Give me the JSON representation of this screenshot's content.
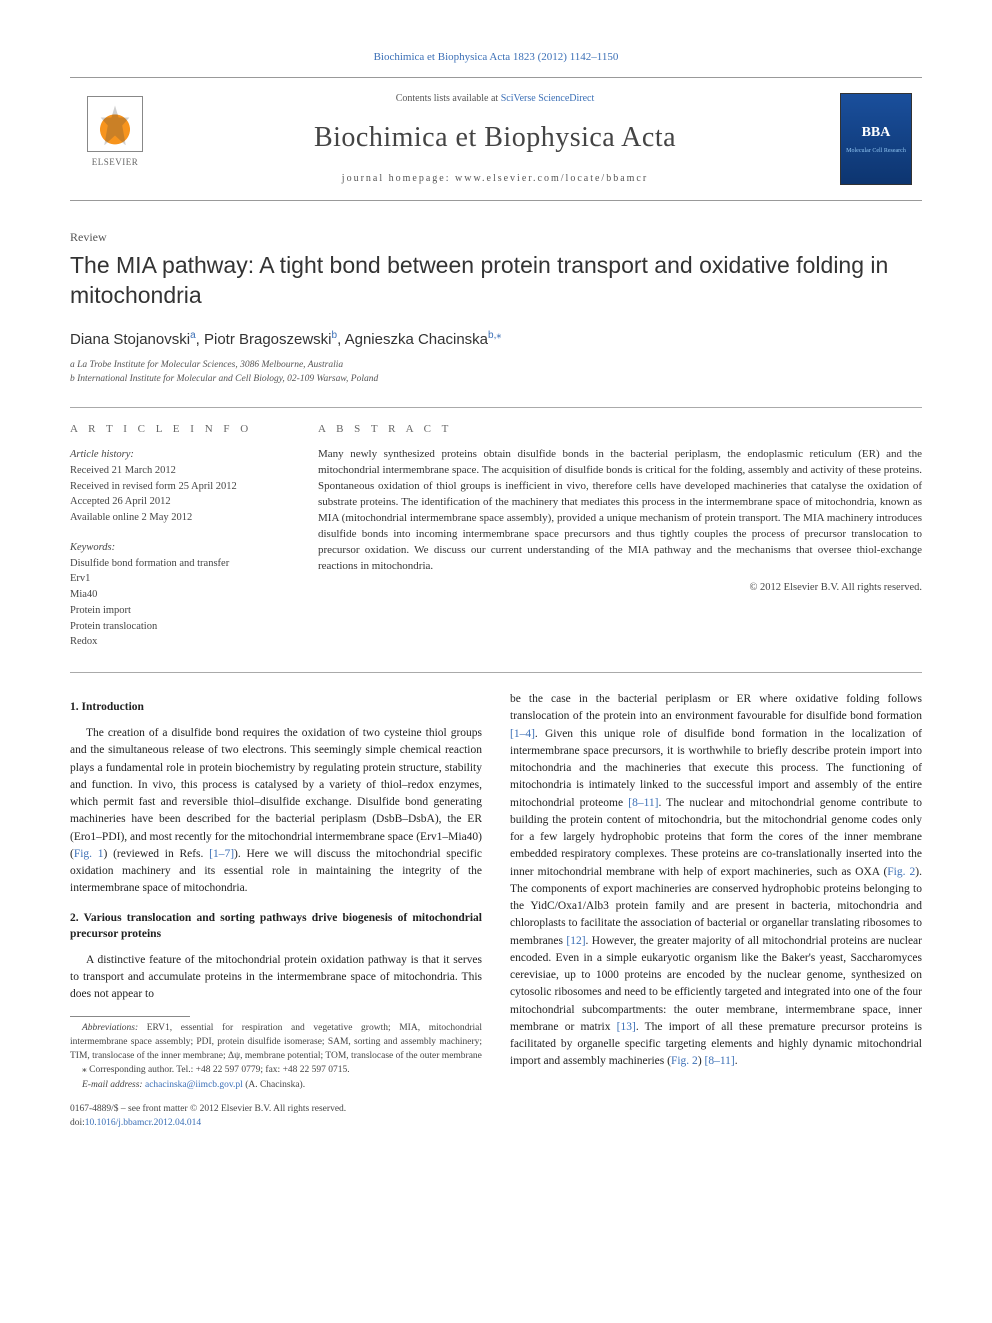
{
  "header": {
    "top_link": "Biochimica et Biophysica Acta 1823 (2012) 1142–1150",
    "elsevier": "ELSEVIER",
    "contents": "Contents lists available at ",
    "contents_link": "SciVerse ScienceDirect",
    "journal_title": "Biochimica et Biophysica Acta",
    "homepage_label": "journal homepage: www.elsevier.com/locate/bbamcr",
    "bba_logo_text": "BBA",
    "bba_logo_sub": "Molecular Cell Research"
  },
  "article": {
    "review_label": "Review",
    "title": "The MIA pathway: A tight bond between protein transport and oxidative folding in mitochondria",
    "authors_html": "Diana Stojanovski",
    "author1_sup": "a",
    "author2": ", Piotr Bragoszewski",
    "author2_sup": "b",
    "author3": ", Agnieszka Chacinska",
    "author3_sup": "b,",
    "star": "⁎",
    "aff_a": "a La Trobe Institute for Molecular Sciences, 3086 Melbourne, Australia",
    "aff_b": "b International Institute for Molecular and Cell Biology, 02-109 Warsaw, Poland"
  },
  "info": {
    "heading": "A R T I C L E   I N F O",
    "history_label": "Article history:",
    "received": "Received 21 March 2012",
    "revised": "Received in revised form 25 April 2012",
    "accepted": "Accepted 26 April 2012",
    "online": "Available online 2 May 2012",
    "keywords_label": "Keywords:",
    "kw1": "Disulfide bond formation and transfer",
    "kw2": "Erv1",
    "kw3": "Mia40",
    "kw4": "Protein import",
    "kw5": "Protein translocation",
    "kw6": "Redox"
  },
  "abstract": {
    "heading": "A B S T R A C T",
    "text": "Many newly synthesized proteins obtain disulfide bonds in the bacterial periplasm, the endoplasmic reticulum (ER) and the mitochondrial intermembrane space. The acquisition of disulfide bonds is critical for the folding, assembly and activity of these proteins. Spontaneous oxidation of thiol groups is inefficient in vivo, therefore cells have developed machineries that catalyse the oxidation of substrate proteins. The identification of the machinery that mediates this process in the intermembrane space of mitochondria, known as MIA (mitochondrial intermembrane space assembly), provided a unique mechanism of protein transport. The MIA machinery introduces disulfide bonds into incoming intermembrane space precursors and thus tightly couples the process of precursor translocation to precursor oxidation. We discuss our current understanding of the MIA pathway and the mechanisms that oversee thiol-exchange reactions in mitochondria.",
    "copyright": "© 2012 Elsevier B.V. All rights reserved."
  },
  "body": {
    "s1_heading": "1. Introduction",
    "s1_p1a": "The creation of a disulfide bond requires the oxidation of two cysteine thiol groups and the simultaneous release of two electrons. This seemingly simple chemical reaction plays a fundamental role in protein biochemistry by regulating protein structure, stability and function. In vivo, this process is catalysed by a variety of thiol–redox enzymes, which permit fast and reversible thiol–disulfide exchange. Disulfide bond generating machineries have been described for the bacterial periplasm (DsbB–DsbA), the ER (Ero1–PDI), and most recently for the mitochondrial intermembrane space (Erv1–Mia40) (",
    "s1_fig1": "Fig. 1",
    "s1_p1b": ") (reviewed in Refs. ",
    "s1_cite1": "[1–7]",
    "s1_p1c": "). Here we will discuss the mitochondrial specific oxidation machinery and its essential role in maintaining the integrity of the intermembrane space of mitochondria.",
    "s2_heading": "2. Various translocation and sorting pathways drive biogenesis of mitochondrial precursor proteins",
    "s2_p1": "A distinctive feature of the mitochondrial protein oxidation pathway is that it serves to transport and accumulate proteins in the intermembrane space of mitochondria. This does not appear to",
    "s2_p2a": "be the case in the bacterial periplasm or ER where oxidative folding follows translocation of the protein into an environment favourable for disulfide bond formation ",
    "s2_cite2": "[1–4]",
    "s2_p2b": ". Given this unique role of disulfide bond formation in the localization of intermembrane space precursors, it is worthwhile to briefly describe protein import into mitochondria and the machineries that execute this process. The functioning of mitochondria is intimately linked to the successful import and assembly of the entire mitochondrial proteome ",
    "s2_cite3": "[8–11]",
    "s2_p2c": ". The nuclear and mitochondrial genome contribute to building the protein content of mitochondria, but the mitochondrial genome codes only for a few largely hydrophobic proteins that form the cores of the inner membrane embedded respiratory complexes. These proteins are co-translationally inserted into the inner mitochondrial membrane with help of export machineries, such as OXA (",
    "s2_fig2": "Fig. 2",
    "s2_p2d": "). The components of export machineries are conserved hydrophobic proteins belonging to the YidC/Oxa1/Alb3 protein family and are present in bacteria, mitochondria and chloroplasts to facilitate the association of bacterial or organellar translating ribosomes to membranes ",
    "s2_cite4": "[12]",
    "s2_p2e": ". However, the greater majority of all mitochondrial proteins are nuclear encoded. Even in a simple eukaryotic organism like the Baker's yeast, Saccharomyces cerevisiae, up to 1000 proteins are encoded by the nuclear genome, synthesized on cytosolic ribosomes and need to be efficiently targeted and integrated into one of the four mitochondrial subcompartments: the outer membrane, intermembrane space, inner membrane or matrix ",
    "s2_cite5": "[13]",
    "s2_p2f": ". The import of all these premature precursor proteins is facilitated by organelle specific targeting elements and highly dynamic mitochondrial import and assembly machineries (",
    "s2_fig2b": "Fig. 2",
    "s2_p2g": ") ",
    "s2_cite6": "[8–11]",
    "s2_p2h": "."
  },
  "footnotes": {
    "abbrev_label": "Abbreviations:",
    "abbrev_text": " ERV1, essential for respiration and vegetative growth; MIA, mitochondrial intermembrane space assembly; PDI, protein disulfide isomerase; SAM, sorting and assembly machinery; TIM, translocase of the inner membrane; Δψ, membrane potential; TOM, translocase of the outer membrane",
    "corr_label": "⁎ Corresponding author. Tel.: +48 22 597 0779; fax: +48 22 597 0715.",
    "email_label": "E-mail address: ",
    "email": "achacinska@iimcb.gov.pl",
    "email_who": " (A. Chacinska)."
  },
  "bottom": {
    "issn": "0167-4889/$ – see front matter © 2012 Elsevier B.V. All rights reserved.",
    "doi_label": "doi:",
    "doi": "10.1016/j.bbamcr.2012.04.014"
  }
}
